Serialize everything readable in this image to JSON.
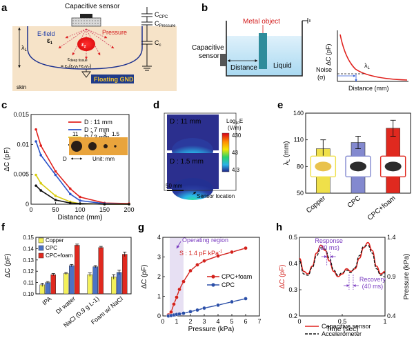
{
  "panels": {
    "a": {
      "letter": "a",
      "sensor_label": "Capacitive sensor",
      "c_cpc": "C",
      "c_cpc_sub": "CPC",
      "c_pressure": "C",
      "c_pressure_sub": "Pressure",
      "c_c": "C",
      "c_c_sub": "c",
      "efield": "E-field",
      "pressure": "Pressure",
      "eps1": "ε",
      "eps1_sub": "1",
      "eps2": "ε",
      "eps2_sub": "2",
      "lambda": "λ",
      "lambda_sub": "L",
      "eps_deep_a": "ε",
      "eps_deep_sub": "deep  tissue",
      "eps_deep_b": "= ε₀(ε₁v₁+ε₂v₂)",
      "skin": "skin",
      "gnd": "Floating GND"
    },
    "b": {
      "letter": "b",
      "metal": "Metal object",
      "sensor": "Capacitive",
      "sensor2": "sensor",
      "distance": "Distance",
      "liquid": "Liquid",
      "ylabel": "ΔC (pF)",
      "noise": "Noise",
      "sigma": "(σ)",
      "lambda": "λ",
      "lambda_sub": "L",
      "xlabel": "Distance (mm)"
    },
    "c": {
      "letter": "c",
      "inset_numbers": [
        "11",
        "7",
        "3",
        "1.5"
      ],
      "inset_d": "D",
      "inset_unit": "Unit: mm"
    },
    "d": {
      "letter": "d",
      "top_label": "D : 11 mm",
      "bottom_label": "D : 1.5 mm",
      "scale_bar": "50 mm",
      "colorbar_title": "Log",
      "colorbar_title_sub": "10",
      "colorbar_title_end": "E",
      "colorbar_unit": "(V/m)",
      "colorbar_ticks": [
        "430",
        "43",
        "4.3"
      ],
      "sensor_location": "Sensor location"
    },
    "e": {
      "letter": "e"
    },
    "f": {
      "letter": "f"
    },
    "g": {
      "letter": "g",
      "operating_region": "Operating region",
      "sensitivity": "S : 1.4 pF kPa",
      "sensitivity_sup": "-1"
    },
    "h": {
      "letter": "h",
      "response": "Response",
      "response_ms": "(30 ms)",
      "recovery": "Recovery",
      "recovery_ms": "(40 ms)"
    }
  },
  "chart_data": [
    {
      "id": "c",
      "type": "scatter",
      "title": "",
      "xlabel": "Distance (mm)",
      "ylabel": "ΔC (pF)",
      "xlim": [
        0,
        200
      ],
      "ylim": [
        0,
        0.015
      ],
      "xticks": [
        "0",
        "50",
        "100",
        "150",
        "200"
      ],
      "yticks": [
        "0",
        "0.005",
        "0.01",
        "0.015"
      ],
      "series": [
        {
          "name": "D : 11 mm",
          "color": "#e0211d",
          "x": [
            10,
            20,
            50,
            80,
            100,
            150,
            200
          ],
          "y": [
            0.0125,
            0.0098,
            0.0055,
            0.0026,
            0.0012,
            0.0002,
            0.0001
          ]
        },
        {
          "name": "D : 7 mm",
          "color": "#2a52c9",
          "x": [
            10,
            20,
            50,
            80,
            100,
            150,
            200
          ],
          "y": [
            0.0105,
            0.0082,
            0.0049,
            0.0017,
            0.0006,
            0.0001,
            0.0
          ]
        },
        {
          "name": "D : 3 mm",
          "color": "#d8cc10",
          "x": [
            10,
            20,
            50,
            80,
            100,
            150,
            200
          ],
          "y": [
            0.0049,
            0.0035,
            0.0014,
            0.0004,
            0.0001,
            0.0,
            0.0
          ]
        },
        {
          "name": "D : 1.5 mm",
          "color": "#111111",
          "x": [
            10,
            20,
            50,
            80,
            100,
            150,
            200
          ],
          "y": [
            0.0031,
            0.0023,
            0.0007,
            0.0002,
            0.0001,
            0.0,
            0.0
          ]
        }
      ]
    },
    {
      "id": "e",
      "type": "bar",
      "title": "",
      "xlabel": "",
      "ylabel": "λ",
      "ylabel_sub": "L",
      "ylabel_unit": "(mm)",
      "ylim": [
        50,
        140
      ],
      "yticks": [
        "50",
        "80",
        "110",
        "140"
      ],
      "categories": [
        "Copper",
        "CPC",
        "CPC+foam"
      ],
      "values": [
        100,
        107,
        123
      ],
      "errors": [
        10,
        7,
        9
      ],
      "colors": [
        "#efe04a",
        "#8389cf",
        "#e0291f"
      ]
    },
    {
      "id": "f",
      "type": "bar",
      "title": "",
      "xlabel": "",
      "ylabel": "ΔC (pF)",
      "ylim": [
        0.1,
        0.15
      ],
      "yticks": [
        "0.10",
        "0.11",
        "0.12",
        "0.13",
        "0.14",
        "0.15"
      ],
      "categories": [
        "IPA",
        "DI water",
        "NaCl (0.9 g L-1)",
        "Foam w/ NaCl"
      ],
      "series": [
        {
          "name": "Copper",
          "color": "#f3f05a",
          "values": [
            0.108,
            0.118,
            0.117,
            0.115
          ],
          "errors": [
            0.0015,
            0.001,
            0.0015,
            0.002
          ]
        },
        {
          "name": "CPC",
          "color": "#4b72c4",
          "values": [
            0.11,
            0.125,
            0.124,
            0.119
          ],
          "errors": [
            0.001,
            0.001,
            0.001,
            0.002
          ]
        },
        {
          "name": "CPC+foam",
          "color": "#e0291f",
          "values": [
            0.117,
            0.143,
            0.141,
            0.135
          ],
          "errors": [
            0.001,
            0.001,
            0.001,
            0.002
          ]
        }
      ]
    },
    {
      "id": "g",
      "type": "line",
      "title": "",
      "xlabel": "Pressure (kPa)",
      "ylabel": "ΔC (pF)",
      "xlim": [
        0,
        7
      ],
      "ylim": [
        0,
        4
      ],
      "xticks": [
        "0",
        "1",
        "2",
        "3",
        "4",
        "5",
        "6",
        "7"
      ],
      "yticks": [
        "0",
        "1",
        "2",
        "3",
        "4"
      ],
      "operating_region_x": [
        0.5,
        1.5
      ],
      "series": [
        {
          "name": "CPC+foam",
          "color": "#d3211c",
          "x": [
            0.4,
            0.6,
            0.8,
            1.0,
            1.2,
            1.5,
            2.0,
            2.5,
            3.0,
            4.0,
            5.0,
            6.0
          ],
          "y": [
            0.05,
            0.2,
            0.6,
            0.95,
            1.35,
            1.75,
            2.3,
            2.6,
            2.8,
            3.05,
            3.25,
            3.45
          ]
        },
        {
          "name": "CPC",
          "color": "#2b4fa8",
          "x": [
            0.4,
            0.6,
            0.8,
            1.0,
            1.2,
            1.5,
            2.0,
            2.5,
            3.0,
            4.0,
            5.0,
            6.0
          ],
          "y": [
            0.0,
            0.02,
            0.05,
            0.08,
            0.1,
            0.14,
            0.22,
            0.3,
            0.4,
            0.55,
            0.72,
            0.88
          ]
        }
      ]
    },
    {
      "id": "h",
      "type": "line",
      "title": "",
      "xlabel": "Time (sec)",
      "ylabel": "ΔC (pF)",
      "ylabel_right": "Pressure (kPa)",
      "xlim": [
        0,
        1
      ],
      "ylim": [
        0.2,
        0.5
      ],
      "ylim_right": [
        0.4,
        1.4
      ],
      "xticks": [
        "0",
        "0.5",
        "1"
      ],
      "yticks": [
        "0.2",
        "0.3",
        "0.4",
        "0.5"
      ],
      "yticks_right": [
        "0.4",
        "0.9",
        "1.4"
      ],
      "series": [
        {
          "name": "Capacitive sensor",
          "color": "#e0211d",
          "x": [
            0,
            0.05,
            0.1,
            0.15,
            0.2,
            0.25,
            0.3,
            0.35,
            0.4,
            0.45,
            0.5,
            0.55,
            0.6,
            0.65,
            0.7,
            0.75,
            0.8,
            0.85,
            0.9,
            0.95,
            1.0
          ],
          "y": [
            0.42,
            0.37,
            0.36,
            0.39,
            0.44,
            0.47,
            0.45,
            0.41,
            0.37,
            0.35,
            0.36,
            0.38,
            0.37,
            0.38,
            0.42,
            0.46,
            0.48,
            0.45,
            0.39,
            0.36,
            0.37
          ]
        },
        {
          "name": "Accelerometer",
          "color": "#111111",
          "x": [
            0,
            0.05,
            0.1,
            0.15,
            0.2,
            0.25,
            0.3,
            0.35,
            0.4,
            0.45,
            0.5,
            0.55,
            0.6,
            0.65,
            0.7,
            0.75,
            0.8,
            0.85,
            0.9,
            0.95,
            1.0
          ],
          "y": [
            0.41,
            0.36,
            0.355,
            0.385,
            0.43,
            0.46,
            0.455,
            0.42,
            0.375,
            0.355,
            0.365,
            0.375,
            0.365,
            0.385,
            0.43,
            0.465,
            0.47,
            0.44,
            0.38,
            0.355,
            0.365
          ]
        }
      ]
    }
  ]
}
